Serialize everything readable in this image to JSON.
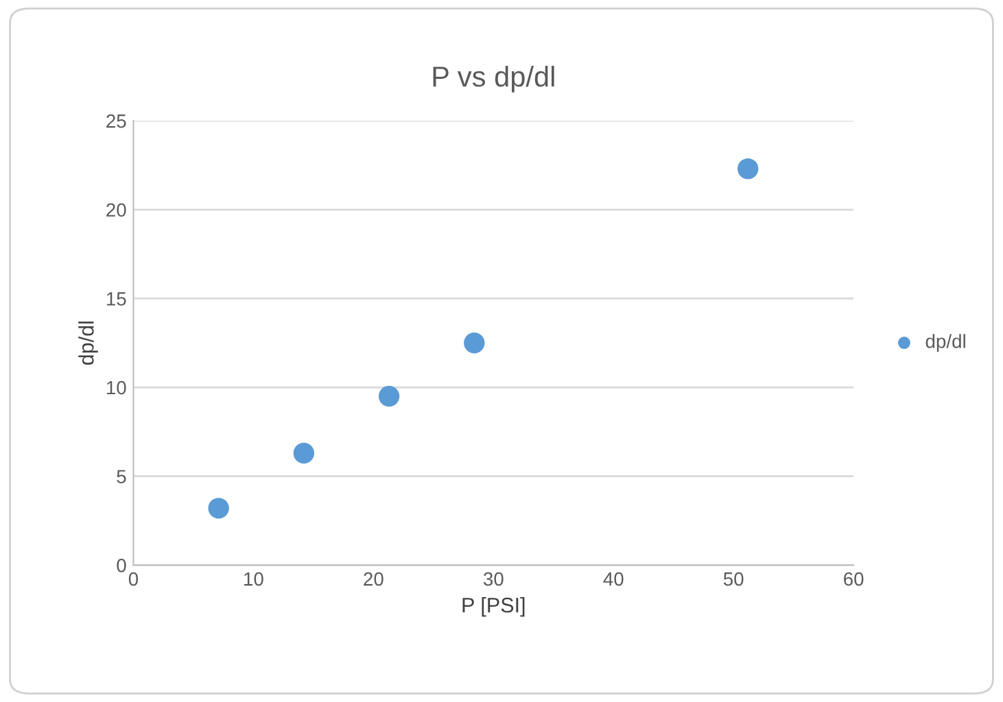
{
  "chart_data": {
    "type": "scatter",
    "title": "P vs dp/dl",
    "xlabel": "P [PSI]",
    "ylabel": "dp/dl",
    "x": [
      7.1,
      14.2,
      21.3,
      28.4,
      51.2
    ],
    "series": [
      {
        "name": "dp/dl",
        "color": "#5b9bd5",
        "values": [
          3.2,
          6.3,
          9.5,
          12.5,
          22.3
        ]
      }
    ],
    "xlim": [
      0,
      60
    ],
    "xticks": [
      0,
      10,
      20,
      30,
      40,
      50,
      60
    ],
    "ylim": [
      0,
      25
    ],
    "yticks": [
      0,
      5,
      10,
      15,
      20,
      25
    ],
    "grid": "y",
    "legend": "right",
    "marker": "circle"
  }
}
